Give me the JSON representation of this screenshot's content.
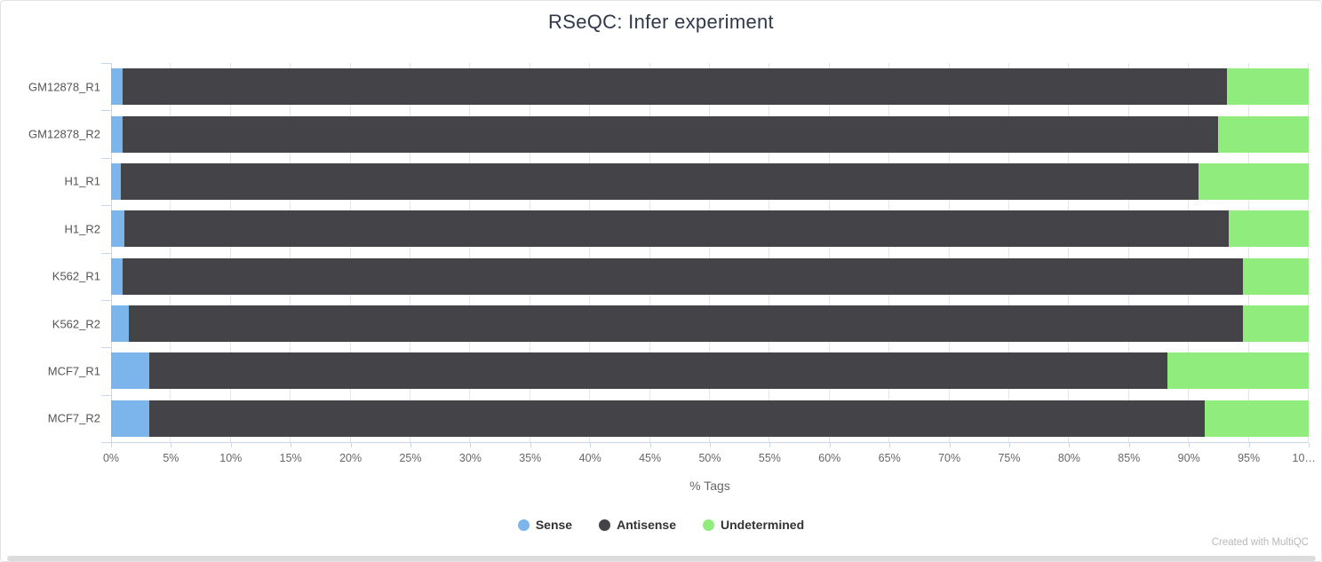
{
  "title": "RSeQC: Infer experiment",
  "footer": "Created with MultiQC",
  "chart_data": {
    "type": "bar",
    "orientation": "horizontal",
    "stacked": true,
    "stacking": "percent",
    "title": "RSeQC: Infer experiment",
    "xlabel": "% Tags",
    "ylabel": "",
    "xlim": [
      0,
      100
    ],
    "grid": true,
    "legend_position": "bottom",
    "categories": [
      "GM12878_R1",
      "GM12878_R2",
      "H1_R1",
      "H1_R2",
      "K562_R1",
      "K562_R2",
      "MCF7_R1",
      "MCF7_R2"
    ],
    "series": [
      {
        "name": "Sense",
        "color": "#7cb5ec",
        "values": [
          1.0,
          1.0,
          0.8,
          1.1,
          1.0,
          1.5,
          3.2,
          3.2
        ]
      },
      {
        "name": "Antisense",
        "color": "#434348",
        "values": [
          92.2,
          91.4,
          90.0,
          92.2,
          93.5,
          93.0,
          85.0,
          88.1
        ]
      },
      {
        "name": "Undetermined",
        "color": "#90ed7d",
        "values": [
          6.8,
          7.6,
          9.2,
          6.7,
          5.5,
          5.5,
          11.8,
          8.7
        ]
      }
    ],
    "x_ticks": [
      {
        "value": 0,
        "label": "0%"
      },
      {
        "value": 5,
        "label": "5%"
      },
      {
        "value": 10,
        "label": "10%"
      },
      {
        "value": 15,
        "label": "15%"
      },
      {
        "value": 20,
        "label": "20%"
      },
      {
        "value": 25,
        "label": "25%"
      },
      {
        "value": 30,
        "label": "30%"
      },
      {
        "value": 35,
        "label": "35%"
      },
      {
        "value": 40,
        "label": "40%"
      },
      {
        "value": 45,
        "label": "45%"
      },
      {
        "value": 50,
        "label": "50%"
      },
      {
        "value": 55,
        "label": "55%"
      },
      {
        "value": 60,
        "label": "60%"
      },
      {
        "value": 65,
        "label": "65%"
      },
      {
        "value": 70,
        "label": "70%"
      },
      {
        "value": 75,
        "label": "75%"
      },
      {
        "value": 80,
        "label": "80%"
      },
      {
        "value": 85,
        "label": "85%"
      },
      {
        "value": 90,
        "label": "90%"
      },
      {
        "value": 95,
        "label": "95%"
      },
      {
        "value": 100,
        "label": "10…"
      }
    ]
  }
}
